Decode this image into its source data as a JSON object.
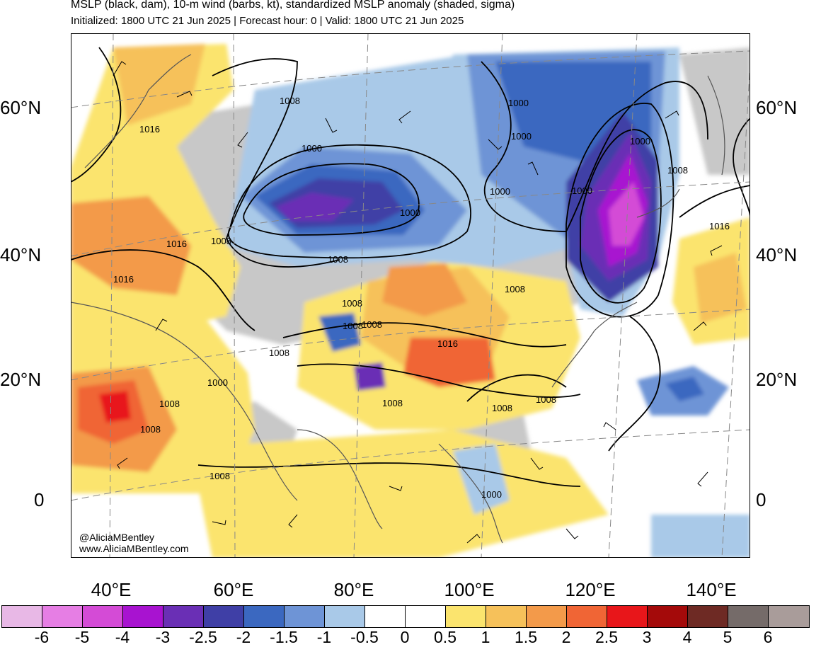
{
  "header": {
    "title": "MSLP (black, dam), 10-m wind (barbs, kt), standardized MSLP anomaly (shaded, sigma)",
    "subtitle": "Initialized: 1800 UTC 21 Jun 2025 | Forecast hour: 0 | Valid: 1800 UTC 21 Jun 2025"
  },
  "map": {
    "lat_labels": [
      "60°N",
      "40°N",
      "20°N",
      "0"
    ],
    "lon_labels": [
      "40°E",
      "60°E",
      "80°E",
      "100°E",
      "120°E",
      "140°E"
    ],
    "contour_labels": [
      "1008",
      "1016",
      "1016",
      "1016",
      "1000",
      "1000",
      "1000",
      "1008",
      "1000",
      "1000",
      "1000",
      "1000",
      "1008",
      "1008",
      "1016",
      "1008",
      "1008",
      "1016",
      "1008",
      "1008",
      "1008",
      "1000",
      "1008",
      "1008",
      "1008",
      "1008",
      "1008",
      "1008",
      "1000"
    ],
    "credit_handle": "@AliciaMBentley",
    "credit_site": "www.AliciaMBentley.com",
    "colors": {
      "neg6": "#e8b8e6",
      "neg5": "#e67ee4",
      "neg4": "#d44bd6",
      "neg3": "#a813d0",
      "neg25": "#6a2fb5",
      "neg2": "#3f3fa6",
      "neg15": "#3b68c0",
      "neg1": "#6e94d6",
      "neg05": "#a9c9e8",
      "zero": "#ffffff",
      "pos05": "#fbe46e",
      "pos1": "#f6c15a",
      "pos15": "#f39a4a",
      "pos2": "#f06535",
      "pos25": "#e8161a",
      "pos3": "#a40a0a",
      "pos4": "#6e2a24",
      "pos5": "#756b69",
      "pos6": "#a99c9a",
      "land_neutral": "#c8c8c8"
    }
  },
  "colorbar": {
    "labels": [
      "-6",
      "-5",
      "-4",
      "-3",
      "-2.5",
      "-2",
      "-1.5",
      "-1",
      "-0.5",
      "0",
      "0.5",
      "1",
      "1.5",
      "2",
      "2.5",
      "3",
      "4",
      "5",
      "6"
    ],
    "colors": [
      "#e8b8e6",
      "#e67ee4",
      "#d44bd6",
      "#a813d0",
      "#6a2fb5",
      "#3f3fa6",
      "#3b68c0",
      "#6e94d6",
      "#a9c9e8",
      "#ffffff",
      "#ffffff",
      "#fbe46e",
      "#f6c15a",
      "#f39a4a",
      "#f06535",
      "#e8161a",
      "#a40a0a",
      "#6e2a24",
      "#756b69",
      "#a99c9a"
    ]
  }
}
